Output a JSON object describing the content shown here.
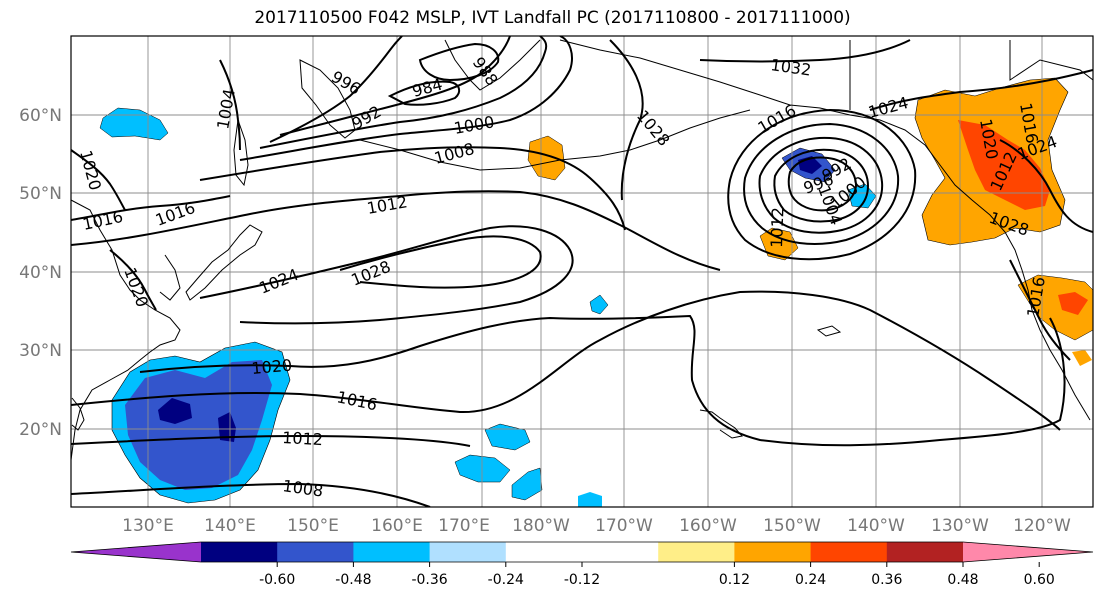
{
  "title": "2017110500 F042 MSLP, IVT Landfall PC (2017110800 - 2017111000)",
  "lat_labels": [
    "60°N",
    "50°N",
    "40°N",
    "30°N",
    "20°N"
  ],
  "lon_labels": [
    "130°E",
    "140°E",
    "150°E",
    "160°E",
    "170°E",
    "180°W",
    "170°W",
    "160°W",
    "150°W",
    "140°W",
    "130°W",
    "120°W"
  ],
  "colorbar": {
    "colors": [
      "#9933cc",
      "#000080",
      "#3355cc",
      "#00bfff",
      "#b0e0ff",
      "#ffffff",
      "#ffffff",
      "#ffee88",
      "#ffa500",
      "#ff4500",
      "#b22222",
      "#ff88aa"
    ],
    "ticks": [
      "-0.60",
      "-0.48",
      "-0.36",
      "-0.24",
      "-0.12",
      "0.12",
      "0.24",
      "0.36",
      "0.48",
      "0.60"
    ]
  },
  "isobar_labels": {
    "c996a": "996",
    "c988": "988",
    "c984": "984",
    "c992a": "992",
    "c1000a": "1000",
    "c1004a": "1004",
    "c1008a": "1008",
    "c1012a": "1012",
    "c1016a": "1016",
    "c1016b": "1016",
    "c1020a": "1020",
    "c1024a": "1024",
    "c1028a": "1028",
    "c1032": "1032",
    "c1028b": "1028",
    "c1016c": "1016",
    "c1012b": "1012",
    "c996b": "996",
    "c992b": "992",
    "c1000b": "1000",
    "c1004b": "1004",
    "c1024b": "1024",
    "c1020b": "1020",
    "c1024c": "1024",
    "c1012c": "1012",
    "c1028c": "1028",
    "c1016d": "1016",
    "c1016e": "1016",
    "c1020c": "1020",
    "c1016f": "1016",
    "c1012d": "1012",
    "c1008b": "1008",
    "c1020d": "1020"
  }
}
